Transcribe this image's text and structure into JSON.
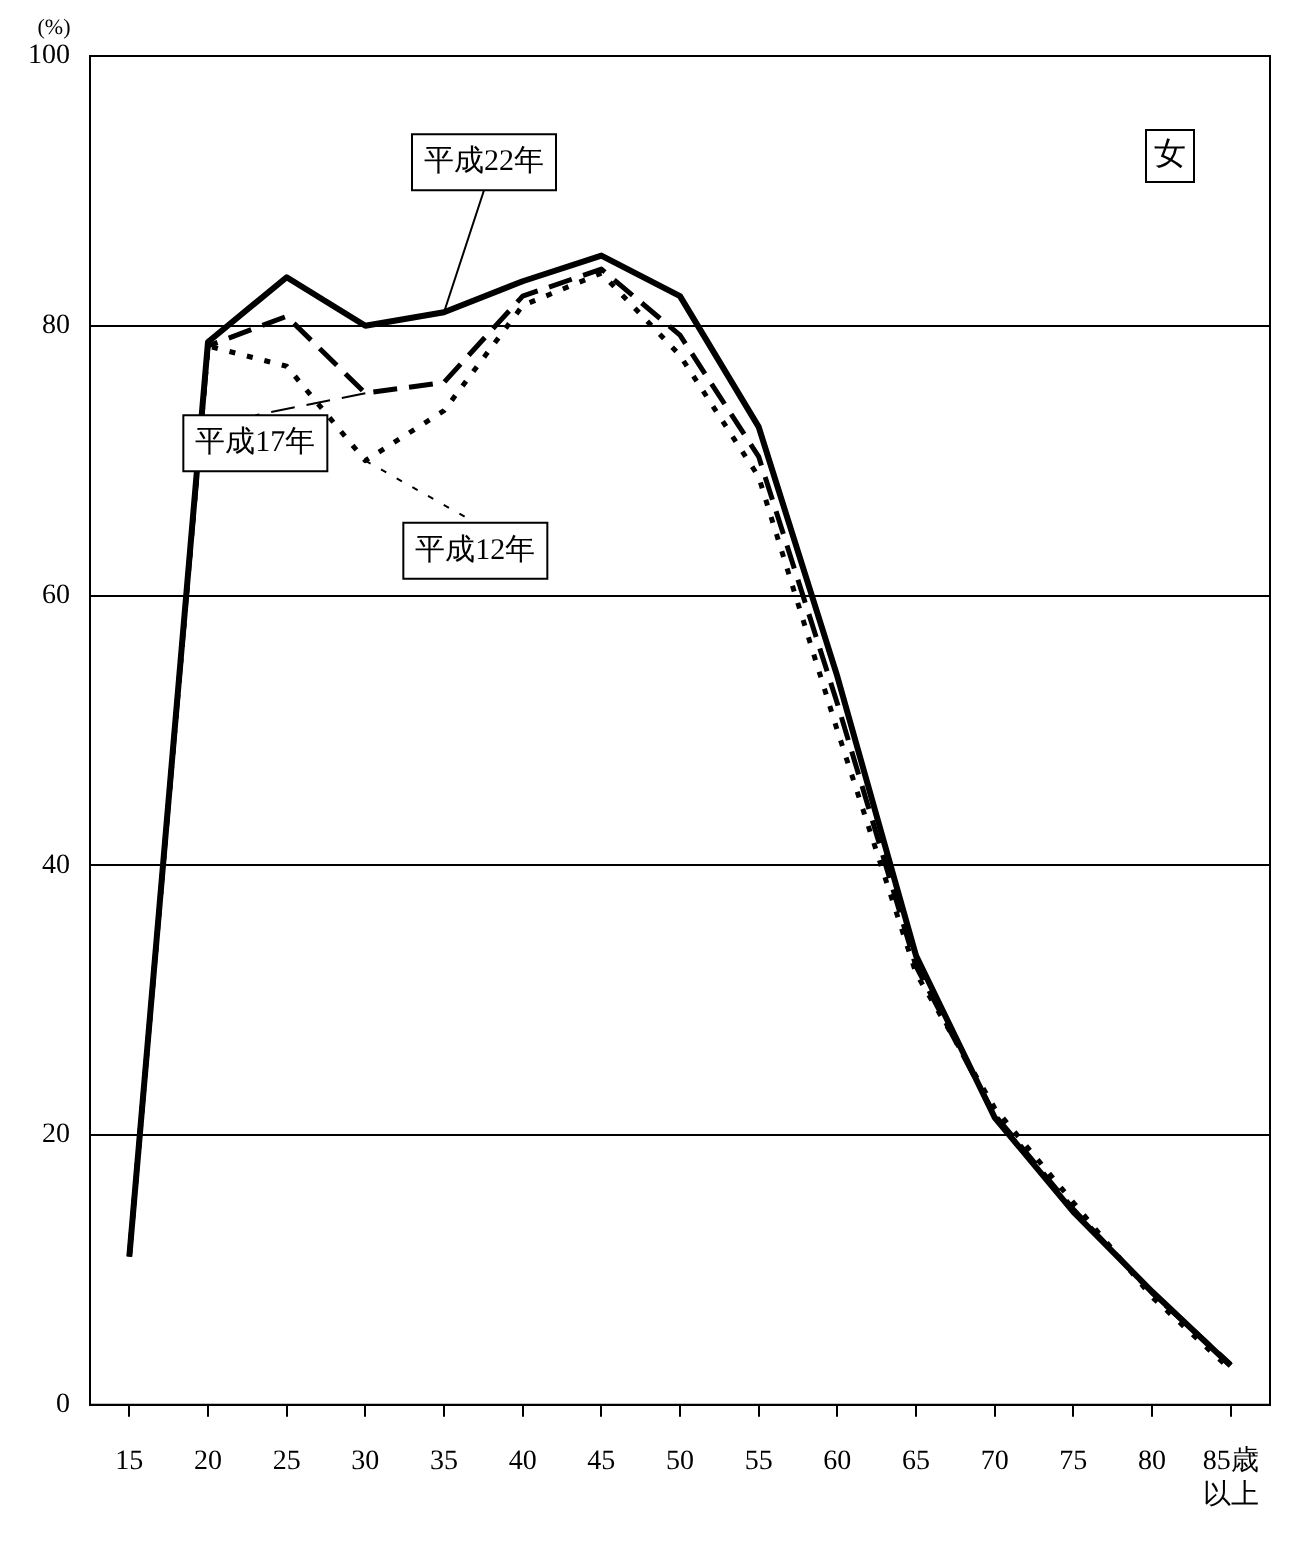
{
  "chart_data": {
    "type": "line",
    "ylabel": "(%)",
    "categories": [
      "15",
      "20",
      "25",
      "30",
      "35",
      "40",
      "45",
      "50",
      "55",
      "60",
      "65",
      "70",
      "75",
      "80",
      "85歳以上"
    ],
    "series": [
      {
        "name": "平成22年",
        "color": "#000000",
        "line_style": "solid",
        "values": [
          11.0,
          78.8,
          83.6,
          80.0,
          81.0,
          83.3,
          85.2,
          82.2,
          72.5,
          54.0,
          33.3,
          21.3,
          14.3,
          8.4,
          2.9
        ]
      },
      {
        "name": "平成17年",
        "color": "#000000",
        "line_style": "dashed",
        "values": [
          11.0,
          78.5,
          80.7,
          75.0,
          75.8,
          82.2,
          84.2,
          79.3,
          70.3,
          52.0,
          32.5,
          21.5,
          14.5,
          8.3,
          3.0
        ]
      },
      {
        "name": "平成12年",
        "color": "#000000",
        "line_style": "dotted",
        "values": [
          11.0,
          78.5,
          77.0,
          70.0,
          73.7,
          81.5,
          83.9,
          77.8,
          68.8,
          50.0,
          32.0,
          22.0,
          15.0,
          8.0,
          2.6
        ]
      }
    ],
    "annotations": [
      "女"
    ],
    "ylim": [
      0,
      100
    ],
    "yticks": [
      0,
      20,
      40,
      60,
      80,
      100
    ],
    "grid": "y",
    "legend": "top left",
    "marker": "none"
  }
}
